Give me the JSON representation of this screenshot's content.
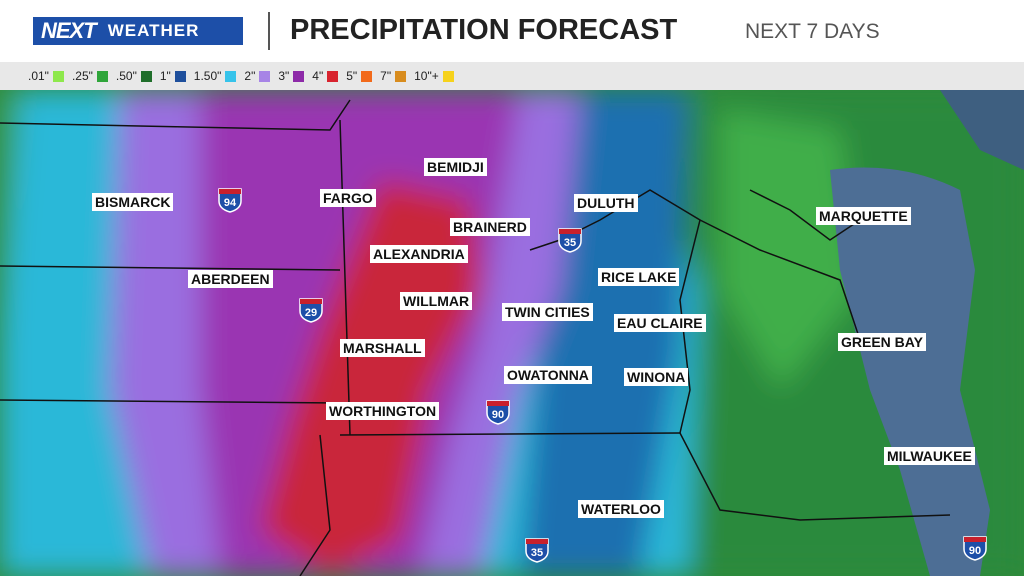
{
  "header": {
    "logo": {
      "brand": "NEXT",
      "tag": "WEATHER"
    },
    "title": "PRECIPITATION FORECAST",
    "subtitle": "NEXT 7 DAYS"
  },
  "legend": {
    "items": [
      {
        "label": ".01\"",
        "color": "#8ee84c"
      },
      {
        "label": ".25\"",
        "color": "#2fa53a"
      },
      {
        "label": ".50\"",
        "color": "#1f6e2a"
      },
      {
        "label": "1\"",
        "color": "#1e4f9c"
      },
      {
        "label": "1.50\"",
        "color": "#36c3ea"
      },
      {
        "label": "2\"",
        "color": "#a784e6"
      },
      {
        "label": "3\"",
        "color": "#8d2aa8"
      },
      {
        "label": "4\"",
        "color": "#d8232e"
      },
      {
        "label": "5\"",
        "color": "#f26a1b"
      },
      {
        "label": "7\"",
        "color": "#d88c1e"
      },
      {
        "label": "10\"+",
        "color": "#f6d21c"
      }
    ]
  },
  "map": {
    "cities": [
      "BISMARCK",
      "FARGO",
      "BEMIDJI",
      "DULUTH",
      "MARQUETTE",
      "BRAINERD",
      "ALEXANDRIA",
      "ABERDEEN",
      "RICE LAKE",
      "WILLMAR",
      "TWIN CITIES",
      "EAU CLAIRE",
      "GREEN BAY",
      "MARSHALL",
      "OWATONNA",
      "WINONA",
      "WORTHINGTON",
      "MILWAUKEE",
      "WATERLOO"
    ],
    "highways": [
      "94",
      "29",
      "35",
      "90",
      "35",
      "90"
    ]
  }
}
